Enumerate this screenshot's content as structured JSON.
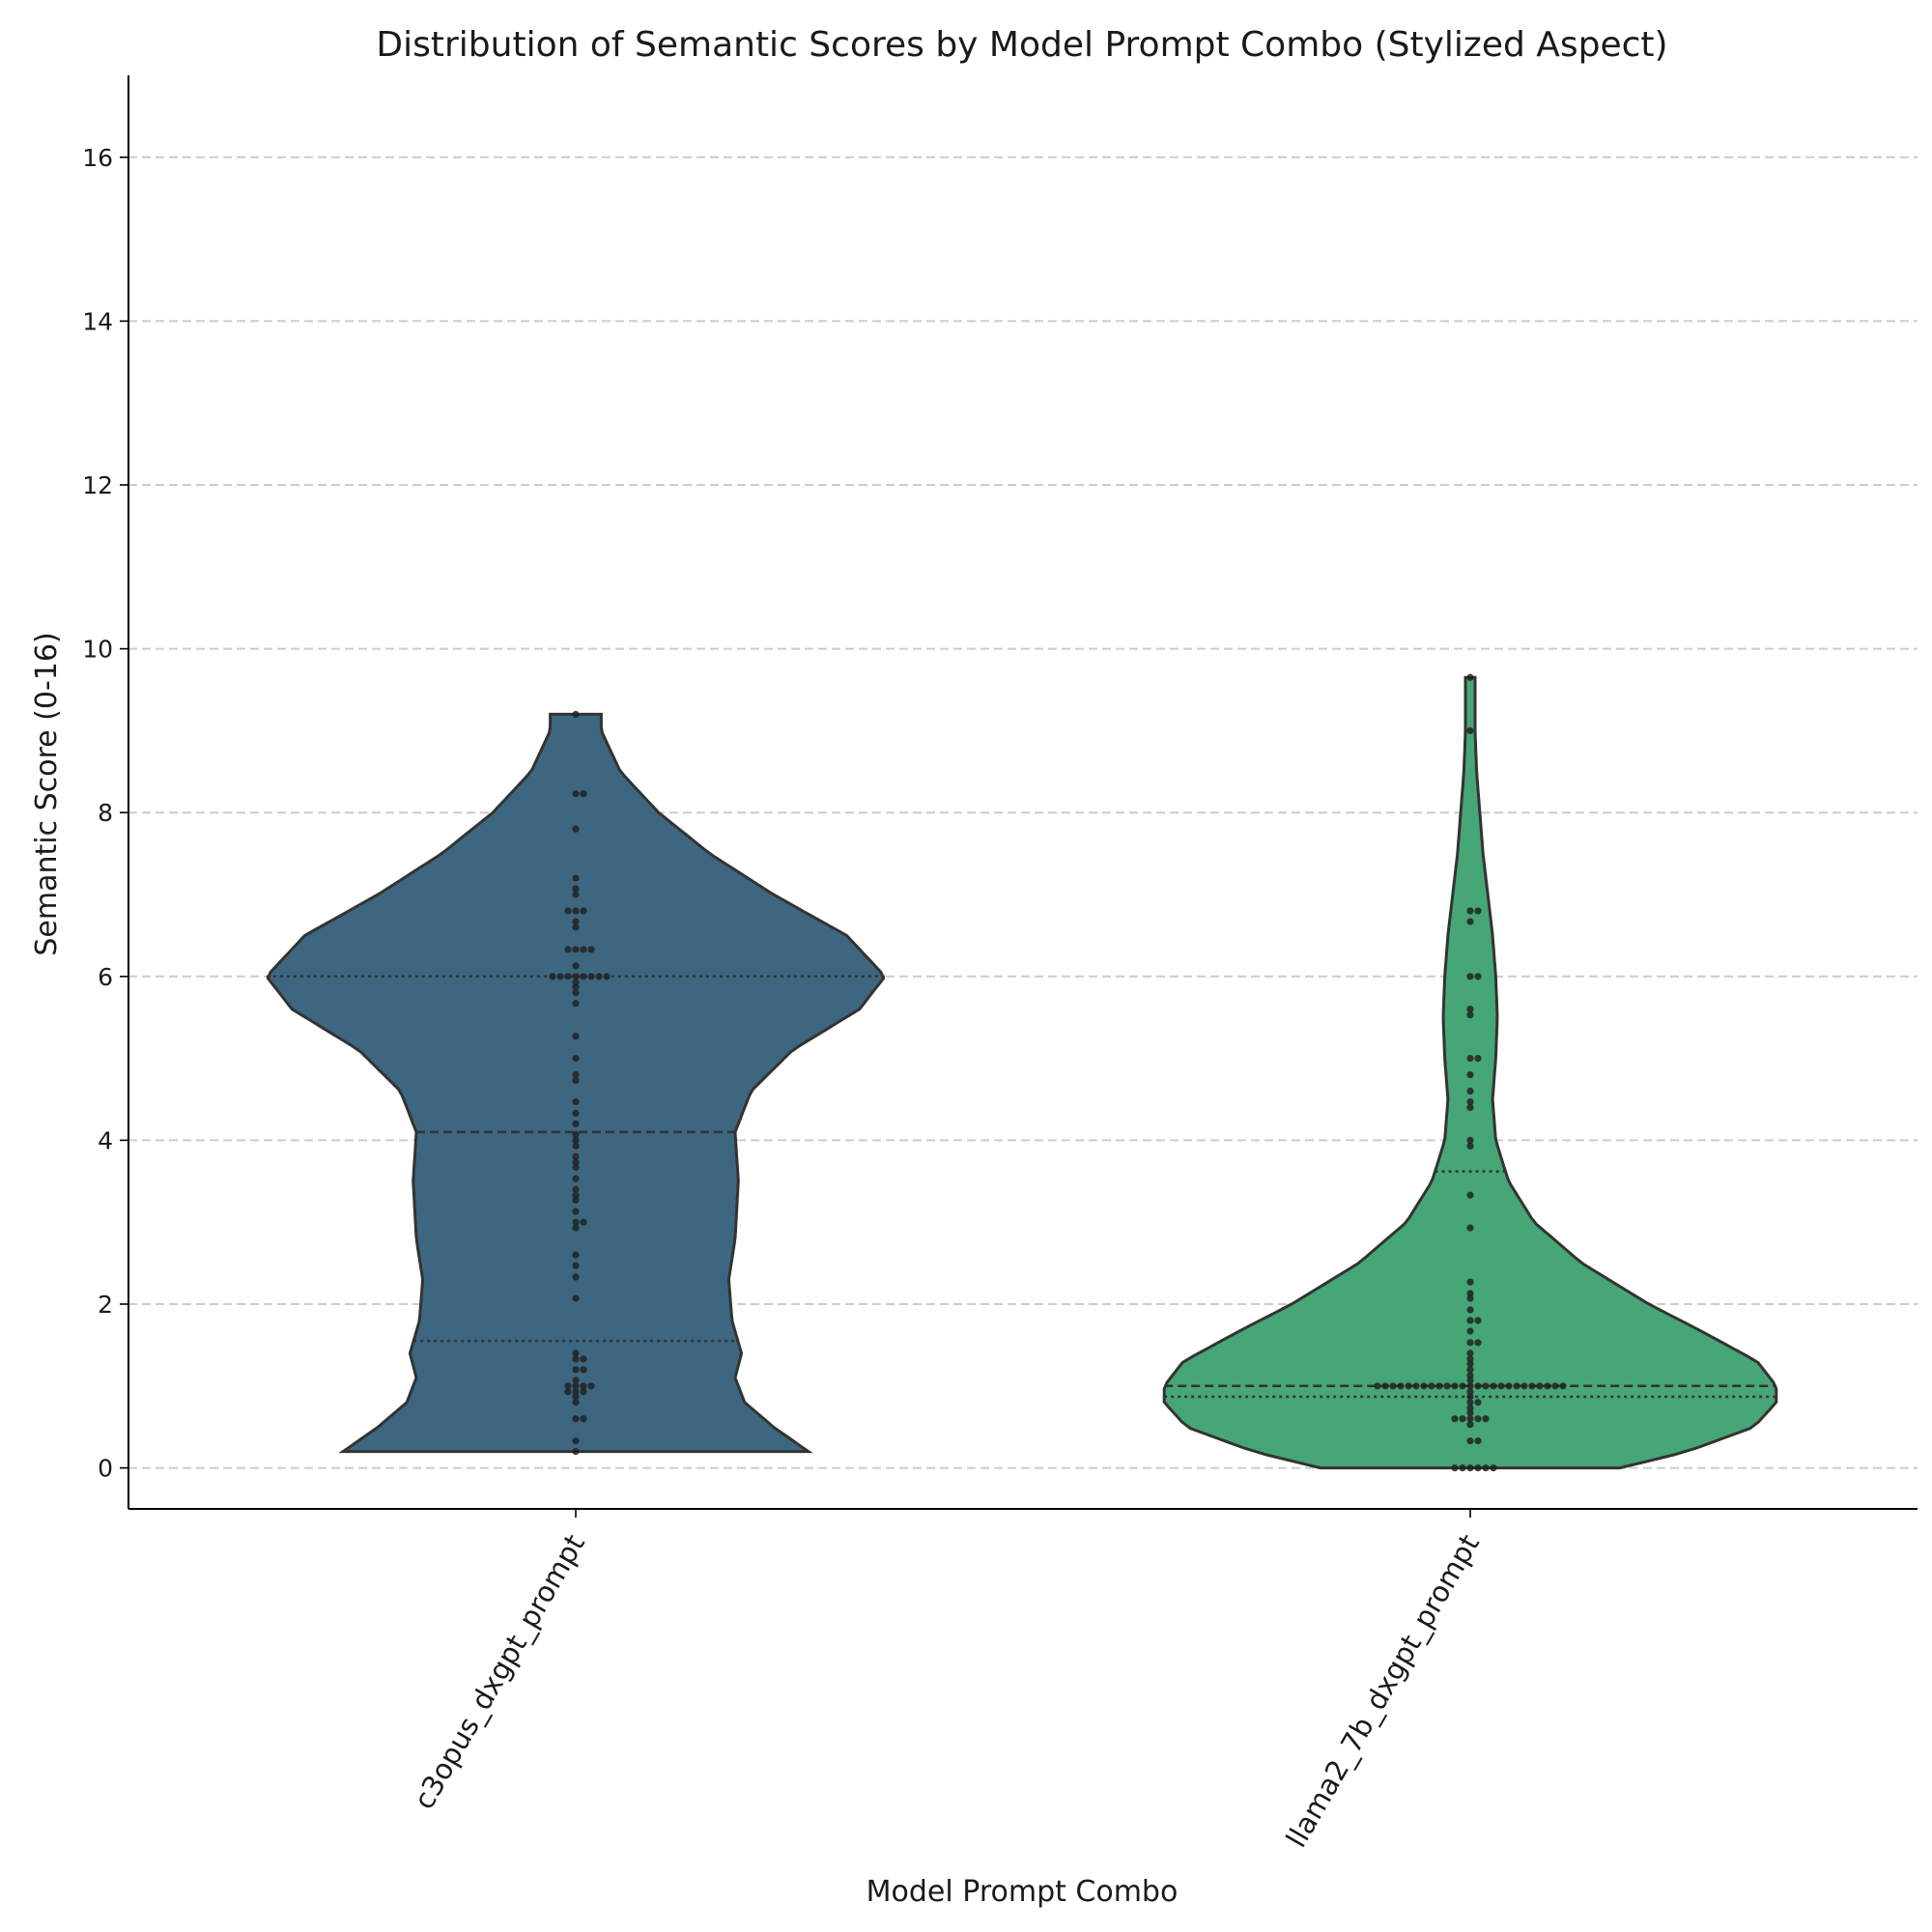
{
  "chart_data": {
    "type": "violin",
    "title": "Distribution of Semantic Scores by Model Prompt Combo (Stylized Aspect)",
    "xlabel": "Model Prompt Combo",
    "ylabel": "Semantic Score (0-16)",
    "ylim": [
      -0.5,
      17
    ],
    "yticks": [
      0,
      2,
      4,
      6,
      8,
      10,
      12,
      14,
      16
    ],
    "grid": "horizontal dashed",
    "categories": [
      "c3opus_dxgpt_prompt",
      "llama2_7b_dxgpt_prompt"
    ],
    "colors": {
      "c3opus_dxgpt_prompt": "#3d6680",
      "llama2_7b_dxgpt_prompt": "#46a675"
    },
    "series": [
      {
        "name": "c3opus_dxgpt_prompt",
        "min": 0.2,
        "max": 9.2,
        "q1": 1.55,
        "median": 4.1,
        "q3": 6.0,
        "density_profile": [
          [
            0.2,
            0.73
          ],
          [
            0.5,
            0.62
          ],
          [
            0.8,
            0.53
          ],
          [
            1.1,
            0.5
          ],
          [
            1.4,
            0.52
          ],
          [
            1.8,
            0.49
          ],
          [
            2.3,
            0.48
          ],
          [
            2.8,
            0.5
          ],
          [
            3.5,
            0.51
          ],
          [
            4.1,
            0.5
          ],
          [
            4.6,
            0.55
          ],
          [
            5.1,
            0.68
          ],
          [
            5.6,
            0.89
          ],
          [
            6.0,
            0.97
          ],
          [
            6.5,
            0.85
          ],
          [
            7.0,
            0.62
          ],
          [
            7.5,
            0.42
          ],
          [
            8.0,
            0.26
          ],
          [
            8.5,
            0.14
          ],
          [
            9.0,
            0.08
          ],
          [
            9.2,
            0.08
          ]
        ],
        "points": [
          0.2,
          0.33,
          0.6,
          0.6,
          0.8,
          0.87,
          0.93,
          0.93,
          0.93,
          1.0,
          1.0,
          1.0,
          1.0,
          1.07,
          1.2,
          1.2,
          1.33,
          1.33,
          1.4,
          2.07,
          2.33,
          2.47,
          2.6,
          2.93,
          3.0,
          3.0,
          3.13,
          3.27,
          3.33,
          3.4,
          3.53,
          3.67,
          3.73,
          3.8,
          3.93,
          4.0,
          4.07,
          4.2,
          4.33,
          4.47,
          4.73,
          4.8,
          5.0,
          5.27,
          5.67,
          5.8,
          5.87,
          5.93,
          6.0,
          6.0,
          6.0,
          6.0,
          6.0,
          6.0,
          6.0,
          6.0,
          6.13,
          6.33,
          6.33,
          6.33,
          6.33,
          6.6,
          6.67,
          6.8,
          6.8,
          6.8,
          7.0,
          7.07,
          7.2,
          7.8,
          8.23,
          8.23,
          9.2
        ]
      },
      {
        "name": "llama2_7b_dxgpt_prompt",
        "min": 0.0,
        "max": 9.65,
        "q1": 0.87,
        "median": 1.0,
        "q3": 3.62,
        "density_profile": [
          [
            0.0,
            0.47
          ],
          [
            0.2,
            0.68
          ],
          [
            0.5,
            0.89
          ],
          [
            0.8,
            0.96
          ],
          [
            1.0,
            0.96
          ],
          [
            1.3,
            0.9
          ],
          [
            1.7,
            0.71
          ],
          [
            2.0,
            0.56
          ],
          [
            2.5,
            0.35
          ],
          [
            3.0,
            0.2
          ],
          [
            3.5,
            0.12
          ],
          [
            4.0,
            0.08
          ],
          [
            4.5,
            0.07
          ],
          [
            5.0,
            0.08
          ],
          [
            5.5,
            0.085
          ],
          [
            6.0,
            0.08
          ],
          [
            6.5,
            0.07
          ],
          [
            7.0,
            0.055
          ],
          [
            7.5,
            0.04
          ],
          [
            8.0,
            0.03
          ],
          [
            8.5,
            0.02
          ],
          [
            9.0,
            0.015
          ],
          [
            9.65,
            0.015
          ]
        ],
        "points": [
          0.0,
          0.0,
          0.0,
          0.0,
          0.0,
          0.0,
          0.33,
          0.33,
          0.53,
          0.6,
          0.6,
          0.6,
          0.6,
          0.6,
          0.67,
          0.73,
          0.8,
          0.8,
          0.87,
          0.93,
          1.0,
          1.0,
          1.0,
          1.0,
          1.0,
          1.0,
          1.0,
          1.0,
          1.0,
          1.0,
          1.0,
          1.0,
          1.0,
          1.0,
          1.0,
          1.0,
          1.0,
          1.0,
          1.0,
          1.0,
          1.0,
          1.0,
          1.0,
          1.0,
          1.0,
          1.07,
          1.13,
          1.2,
          1.27,
          1.33,
          1.4,
          1.53,
          1.53,
          1.67,
          1.8,
          1.8,
          1.93,
          2.07,
          2.13,
          2.27,
          2.93,
          3.33,
          3.93,
          4.0,
          4.4,
          4.47,
          4.6,
          4.8,
          5.0,
          5.0,
          5.53,
          5.6,
          6.0,
          6.0,
          6.67,
          6.8,
          6.8,
          9.0,
          9.65
        ]
      }
    ]
  }
}
